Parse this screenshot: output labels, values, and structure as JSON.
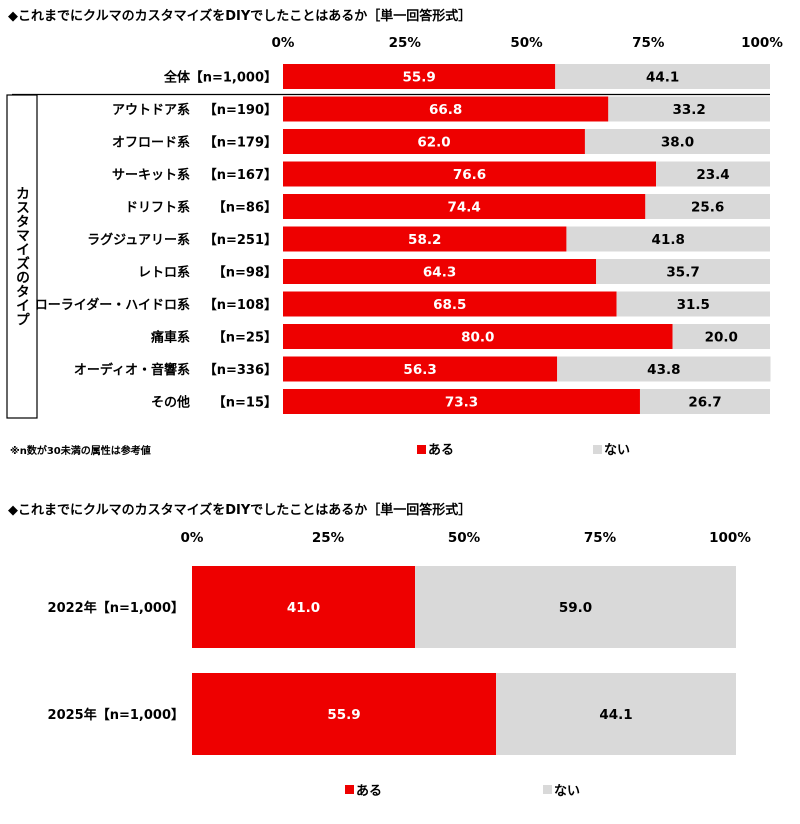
{
  "colors": {
    "yes": "#ee0000",
    "no": "#d9d9d9",
    "yes_text": "#ffffff",
    "no_text": "#000000"
  },
  "chart_data": [
    {
      "type": "bar",
      "stacked": true,
      "orientation": "horizontal",
      "title": "◆これまでにクルマのカスタマイズをDIYでしたことはあるか［単一回答形式］",
      "x_ticks": [
        "0%",
        "25%",
        "50%",
        "75%",
        "100%"
      ],
      "xlim": [
        0,
        100
      ],
      "group_label": "カスタマイズのタイプ",
      "note": "※n数が30未満の属性は参考値",
      "categories": [
        {
          "label": "全体",
          "n": "【n=1,000】"
        },
        {
          "label": "アウトドア系",
          "n": "【n=190】"
        },
        {
          "label": "オフロード系",
          "n": "【n=179】"
        },
        {
          "label": "サーキット系",
          "n": "【n=167】"
        },
        {
          "label": "ドリフト系",
          "n": "【n=86】"
        },
        {
          "label": "ラグジュアリー系",
          "n": "【n=251】"
        },
        {
          "label": "レトロ系",
          "n": "【n=98】"
        },
        {
          "label": "ローライダー・ハイドロ系",
          "n": "【n=108】"
        },
        {
          "label": "痛車系",
          "n": "【n=25】"
        },
        {
          "label": "オーディオ・音響系",
          "n": "【n=336】"
        },
        {
          "label": "その他",
          "n": "【n=15】"
        }
      ],
      "series": [
        {
          "name": "ある",
          "values": [
            "55.9",
            "66.8",
            "62.0",
            "76.6",
            "74.4",
            "58.2",
            "64.3",
            "68.5",
            "80.0",
            "56.3",
            "73.3"
          ]
        },
        {
          "name": "ない",
          "values": [
            "44.1",
            "33.2",
            "38.0",
            "23.4",
            "25.6",
            "41.8",
            "35.7",
            "31.5",
            "20.0",
            "43.8",
            "26.7"
          ]
        }
      ],
      "legend_position": "bottom"
    },
    {
      "type": "bar",
      "stacked": true,
      "orientation": "horizontal",
      "title": "◆これまでにクルマのカスタマイズをDIYでしたことはあるか［単一回答形式］",
      "x_ticks": [
        "0%",
        "25%",
        "50%",
        "75%",
        "100%"
      ],
      "xlim": [
        0,
        100
      ],
      "categories": [
        {
          "label": "2022年",
          "n": "【n=1,000】"
        },
        {
          "label": "2025年",
          "n": "【n=1,000】"
        }
      ],
      "series": [
        {
          "name": "ある",
          "values": [
            "41.0",
            "55.9"
          ]
        },
        {
          "name": "ない",
          "values": [
            "59.0",
            "44.1"
          ]
        }
      ],
      "legend_position": "bottom"
    }
  ]
}
